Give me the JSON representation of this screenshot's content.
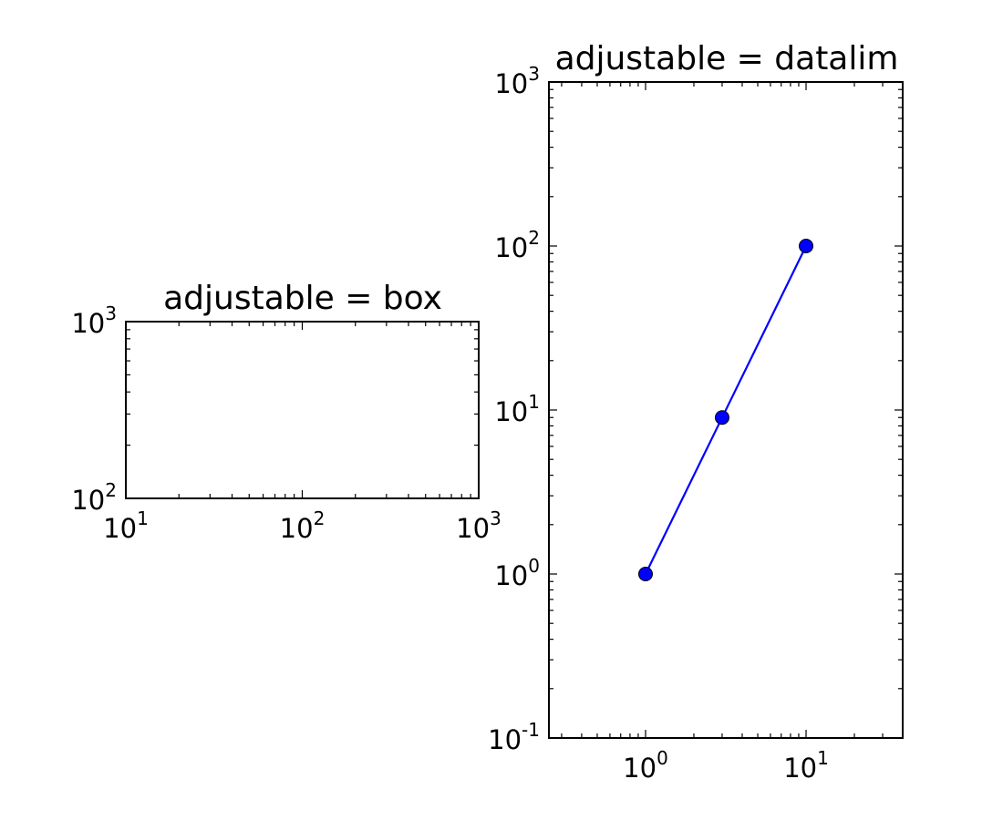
{
  "chart_data": [
    {
      "type": "line",
      "title": "adjustable = box",
      "xlabel": "",
      "ylabel": "",
      "xscale": "log",
      "yscale": "log",
      "xlim": [
        10,
        1000
      ],
      "ylim": [
        100,
        1000
      ],
      "grid": false,
      "xticks": [
        {
          "value": 10,
          "base": "10",
          "exp": "1"
        },
        {
          "value": 100,
          "base": "10",
          "exp": "2"
        },
        {
          "value": 1000,
          "base": "10",
          "exp": "3"
        }
      ],
      "yticks": [
        {
          "value": 100,
          "base": "10",
          "exp": "2"
        },
        {
          "value": 1000,
          "base": "10",
          "exp": "3"
        }
      ],
      "series": []
    },
    {
      "type": "line",
      "title": "adjustable = datalim",
      "xlabel": "",
      "ylabel": "",
      "xscale": "log",
      "yscale": "log",
      "xlim": [
        0.25,
        40
      ],
      "ylim": [
        0.1,
        1000
      ],
      "grid": false,
      "xticks": [
        {
          "value": 1,
          "base": "10",
          "exp": "0"
        },
        {
          "value": 10,
          "base": "10",
          "exp": "1"
        }
      ],
      "yticks": [
        {
          "value": 0.1,
          "base": "10",
          "exp": "-1"
        },
        {
          "value": 1,
          "base": "10",
          "exp": "0"
        },
        {
          "value": 10,
          "base": "10",
          "exp": "1"
        },
        {
          "value": 100,
          "base": "10",
          "exp": "2"
        },
        {
          "value": 1000,
          "base": "10",
          "exp": "3"
        }
      ],
      "series": [
        {
          "x": [
            1,
            3,
            10
          ],
          "y": [
            1,
            9,
            100
          ],
          "color": "#0000ff",
          "marker": "circle"
        }
      ]
    }
  ]
}
